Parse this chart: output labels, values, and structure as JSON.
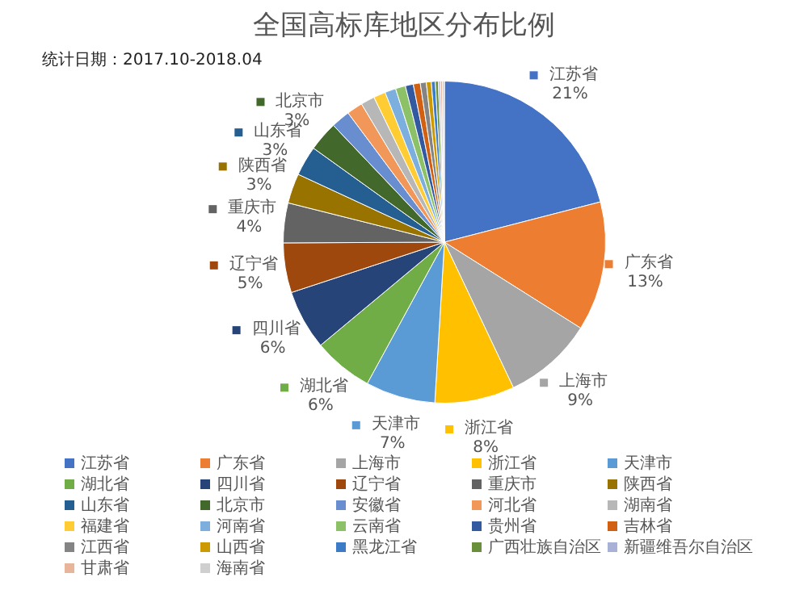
{
  "chart_data": {
    "type": "pie",
    "title": "全国高标库地区分布比例",
    "annotations": [
      "统计日期：2017.10-2018.04"
    ],
    "categories": [
      "江苏省",
      "广东省",
      "上海市",
      "浙江省",
      "天津市",
      "湖北省",
      "四川省",
      "辽宁省",
      "重庆市",
      "陕西省",
      "山东省",
      "北京市",
      "安徽省",
      "河北省",
      "湖南省",
      "福建省",
      "河南省",
      "云南省",
      "贵州省",
      "吉林省",
      "江西省",
      "山西省",
      "黑龙江省",
      "广西壮族自治区",
      "新疆维吾尔自治区",
      "甘肃省",
      "海南省"
    ],
    "values": [
      21,
      13,
      9,
      8,
      7,
      6,
      6,
      5,
      4,
      3,
      3,
      3,
      1.9,
      1.6,
      1.4,
      1.2,
      1.1,
      1,
      0.8,
      0.7,
      0.6,
      0.5,
      0.4,
      0.3,
      0.2,
      0.2,
      0.2
    ],
    "value_labels": [
      "21%",
      "13%",
      "9%",
      "8%",
      "7%",
      "6%",
      "6%",
      "5%",
      "4%",
      "3%",
      "3%",
      "3%",
      null,
      null,
      null,
      null,
      null,
      null,
      null,
      null,
      null,
      null,
      null,
      null,
      null,
      null,
      null
    ],
    "colors": [
      "#4472c4",
      "#ed7d31",
      "#a5a5a5",
      "#ffc000",
      "#5b9bd5",
      "#70ad47",
      "#264478",
      "#9e480e",
      "#636363",
      "#997300",
      "#255e91",
      "#43682b",
      "#698ed0",
      "#f1975a",
      "#b7b7b7",
      "#ffcd33",
      "#7cafdd",
      "#8cc168",
      "#335aa1",
      "#d26012",
      "#848484",
      "#cc9a00",
      "#3c7bc5",
      "#6a8f3a",
      "#a9b2d6",
      "#e8b49a",
      "#cfcfcf"
    ],
    "legend": "bottom"
  }
}
